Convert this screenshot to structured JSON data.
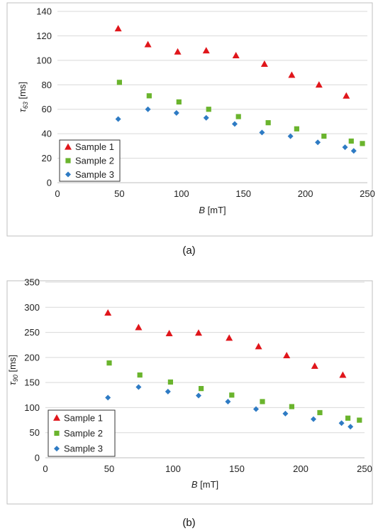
{
  "chart_data": [
    {
      "type": "scatter",
      "caption": "(a)",
      "xlabel_var": "B",
      "xlabel_unit": "[mT]",
      "ylabel_var": "τ",
      "ylabel_sub": "63",
      "ylabel_unit": "[ms]",
      "xlim": [
        0,
        250
      ],
      "ylim": [
        0,
        140
      ],
      "xticks": [
        0,
        50,
        100,
        150,
        200,
        250
      ],
      "yticks": [
        0,
        20,
        40,
        60,
        80,
        100,
        120,
        140
      ],
      "grid": "horizontal",
      "legend_position": "bottom-left",
      "series": [
        {
          "name": "Sample 1",
          "marker": "triangle",
          "color": "#e0161b",
          "x": [
            49,
            73,
            97,
            120,
            144,
            167,
            189,
            211,
            233
          ],
          "y": [
            126,
            113,
            107,
            108,
            104,
            97,
            88,
            80,
            71
          ]
        },
        {
          "name": "Sample 2",
          "marker": "square",
          "color": "#6ab42d",
          "x": [
            50,
            74,
            98,
            122,
            146,
            170,
            193,
            215,
            237,
            246
          ],
          "y": [
            82,
            71,
            66,
            60,
            54,
            49,
            44,
            38,
            34,
            32
          ]
        },
        {
          "name": "Sample 3",
          "marker": "diamond",
          "color": "#2e7bc4",
          "x": [
            49,
            73,
            96,
            120,
            143,
            165,
            188,
            210,
            232,
            239
          ],
          "y": [
            52,
            60,
            57,
            53,
            48,
            41,
            38,
            33,
            29,
            26
          ]
        }
      ]
    },
    {
      "type": "scatter",
      "caption": "(b)",
      "xlabel_var": "B",
      "xlabel_unit": "[mT]",
      "ylabel_var": "τ",
      "ylabel_sub": "90",
      "ylabel_unit": "[ms]",
      "xlim": [
        0,
        250
      ],
      "ylim": [
        0,
        350
      ],
      "xticks": [
        0,
        50,
        100,
        150,
        200,
        250
      ],
      "yticks": [
        0,
        50,
        100,
        150,
        200,
        250,
        300,
        350
      ],
      "grid": "horizontal",
      "legend_position": "bottom-left",
      "series": [
        {
          "name": "Sample 1",
          "marker": "triangle",
          "color": "#e0161b",
          "x": [
            49,
            73,
            97,
            120,
            144,
            167,
            189,
            211,
            233
          ],
          "y": [
            289,
            260,
            248,
            249,
            239,
            222,
            204,
            183,
            165
          ]
        },
        {
          "name": "Sample 2",
          "marker": "square",
          "color": "#6ab42d",
          "x": [
            50,
            74,
            98,
            122,
            146,
            170,
            193,
            215,
            237,
            246
          ],
          "y": [
            189,
            165,
            151,
            138,
            125,
            112,
            102,
            90,
            79,
            75
          ]
        },
        {
          "name": "Sample 3",
          "marker": "diamond",
          "color": "#2e7bc4",
          "x": [
            49,
            73,
            96,
            120,
            143,
            165,
            188,
            210,
            232,
            239
          ],
          "y": [
            120,
            141,
            132,
            124,
            112,
            97,
            88,
            77,
            69,
            62
          ]
        }
      ]
    }
  ]
}
